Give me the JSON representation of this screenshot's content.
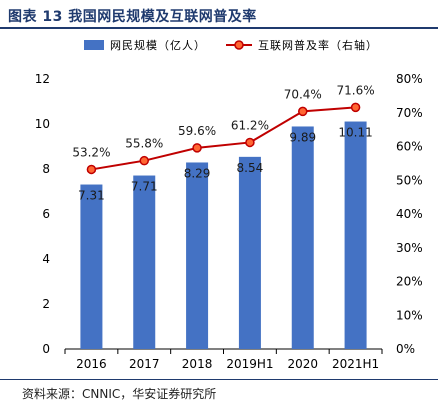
{
  "header": {
    "title": "图表 13  我国网民规模及互联网普及率"
  },
  "footer": {
    "source": "资料来源：CNNIC，华安证券研究所"
  },
  "chart_data": {
    "type": "bar",
    "categories": [
      "2016",
      "2017",
      "2018",
      "2019H1",
      "2020",
      "2021H1"
    ],
    "series": [
      {
        "name": "网民规模（亿人）",
        "type": "bar",
        "axis": "left",
        "color": "#4472c4",
        "values": [
          7.31,
          7.71,
          8.29,
          8.54,
          9.89,
          10.11
        ],
        "labels": [
          "7.31",
          "7.71",
          "8.29",
          "8.54",
          "9.89",
          "10.11"
        ]
      },
      {
        "name": "互联网普及率（右轴）",
        "type": "line",
        "axis": "right",
        "color": "#c00000",
        "values": [
          53.2,
          55.8,
          59.6,
          61.2,
          70.4,
          71.6
        ],
        "labels": [
          "53.2%",
          "55.8%",
          "59.6%",
          "61.2%",
          "70.4%",
          "71.6%"
        ]
      }
    ],
    "y_left": {
      "min": 0,
      "max": 12,
      "ticks": [
        "0",
        "2",
        "4",
        "6",
        "8",
        "10",
        "12"
      ]
    },
    "y_right": {
      "min": 0,
      "max": 80,
      "ticks": [
        "0%",
        "10%",
        "20%",
        "30%",
        "40%",
        "50%",
        "60%",
        "70%",
        "80%"
      ]
    },
    "grid": false,
    "legend": "top"
  }
}
